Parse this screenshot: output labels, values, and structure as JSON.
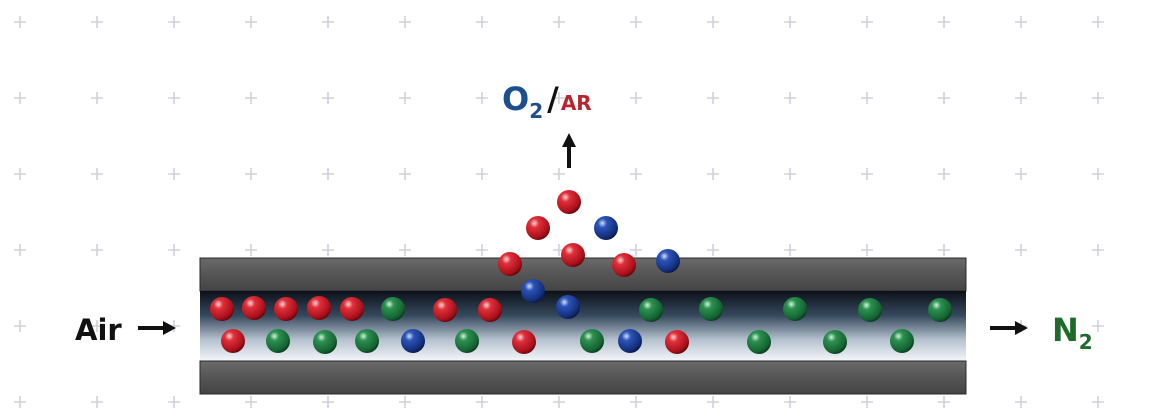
{
  "diagram": {
    "input_label": "Air",
    "output_n2": {
      "base": "N",
      "sub": "2"
    },
    "permeate": {
      "o2_base": "O",
      "o2_sub": "2",
      "slash": "/",
      "ar": "AR"
    }
  },
  "colors": {
    "oxygen": "#cc1f2a",
    "argon": "#1b3f9a",
    "nitrogen": "#1e7a3c",
    "o2_label": "#1d4f8f",
    "ar_label": "#b5262e",
    "n2_label": "#1f6b2b",
    "tube_wall": "#575757",
    "arrow": "#111111",
    "grid_plus": "#cdd1d8"
  }
}
